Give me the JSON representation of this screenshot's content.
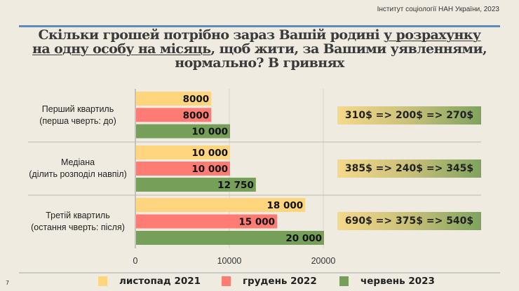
{
  "header": {
    "source": "Інститут соціології НАН України, 2023",
    "page_number": "7"
  },
  "title": {
    "part1": "Скільки грошей потрібно зараз Вашій родині ",
    "underlined": "у розрахунку на одну особу на місяць",
    "part2": ", щоб жити, за Вашими уявленнями, нормально? В гривнях"
  },
  "chart_data": {
    "type": "bar",
    "orientation": "horizontal",
    "categories": [
      {
        "line1": "Перший квартиль",
        "line2": "(перша чверть: до)"
      },
      {
        "line1": "Медіана",
        "line2": "(ділить розподіл навпіл)"
      },
      {
        "line1": "Третій квартиль",
        "line2": "(остання чверть: після)"
      }
    ],
    "series": [
      {
        "name": "листопад 2021",
        "color": "#ffd57e",
        "values": [
          8000,
          10000,
          18000
        ],
        "labels": [
          "8000",
          "10 000",
          "18 000"
        ]
      },
      {
        "name": "грудень 2022",
        "color": "#ff7c74",
        "values": [
          8000,
          10000,
          15000
        ],
        "labels": [
          "8000",
          "10 000",
          "15 000"
        ]
      },
      {
        "name": "червень 2023",
        "color": "#76a05a",
        "values": [
          10000,
          12750,
          20000
        ],
        "labels": [
          "10 000",
          "12 750",
          "20 000"
        ]
      }
    ],
    "xlim": [
      0,
      20000
    ],
    "xticks": [
      "0",
      "10000",
      "20000"
    ],
    "grid": true,
    "legend_placement": "bottom",
    "usd_annotations": [
      "310$ => 200$ => 270$",
      "385$ => 240$ => 345$",
      "690$ => 375$ => 540$"
    ]
  }
}
